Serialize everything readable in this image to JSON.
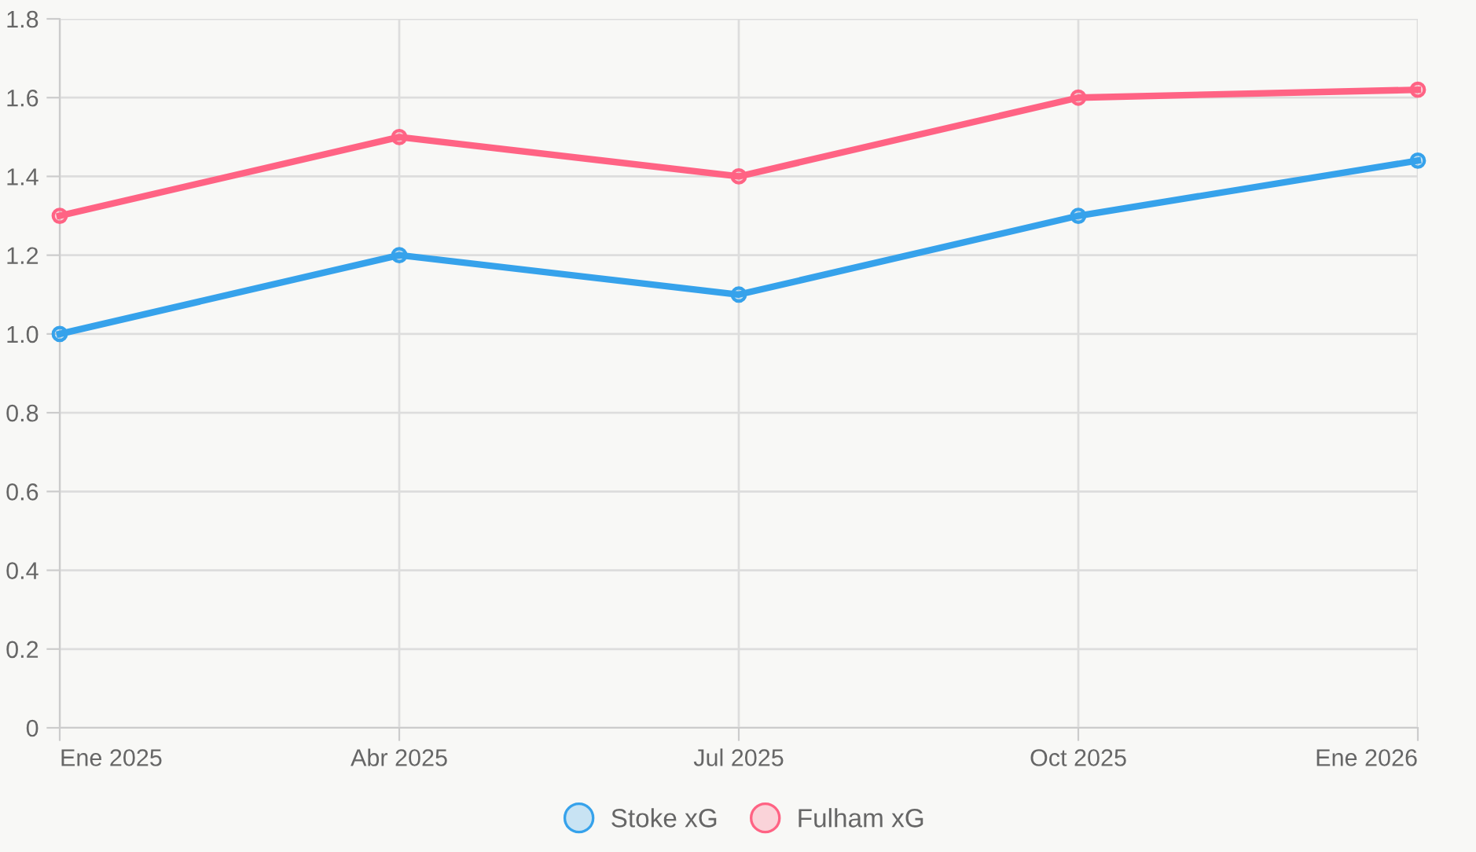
{
  "chart_data": {
    "type": "line",
    "categories": [
      "Ene 2025",
      "Abr 2025",
      "Jul 2025",
      "Oct 2025",
      "Ene 2026"
    ],
    "series": [
      {
        "name": "Stoke xG",
        "color": "#36a2eb",
        "values": [
          1.0,
          1.2,
          1.1,
          1.3,
          1.44
        ]
      },
      {
        "name": "Fulham xG",
        "color": "#ff6384",
        "values": [
          1.3,
          1.5,
          1.4,
          1.6,
          1.62
        ]
      }
    ],
    "ylim": [
      0,
      1.8
    ],
    "yticks": [
      {
        "value": 0,
        "label": "0"
      },
      {
        "value": 0.2,
        "label": "0.2"
      },
      {
        "value": 0.4,
        "label": "0.4"
      },
      {
        "value": 0.6,
        "label": "0.6"
      },
      {
        "value": 0.8,
        "label": "0.8"
      },
      {
        "value": 1.0,
        "label": "1.0"
      },
      {
        "value": 1.2,
        "label": "1.2"
      },
      {
        "value": 1.4,
        "label": "1.4"
      },
      {
        "value": 1.6,
        "label": "1.6"
      },
      {
        "value": 1.8,
        "label": "1.8"
      }
    ],
    "grid": true,
    "legend": "bottom",
    "marker": "circle",
    "line_style": "solid"
  }
}
